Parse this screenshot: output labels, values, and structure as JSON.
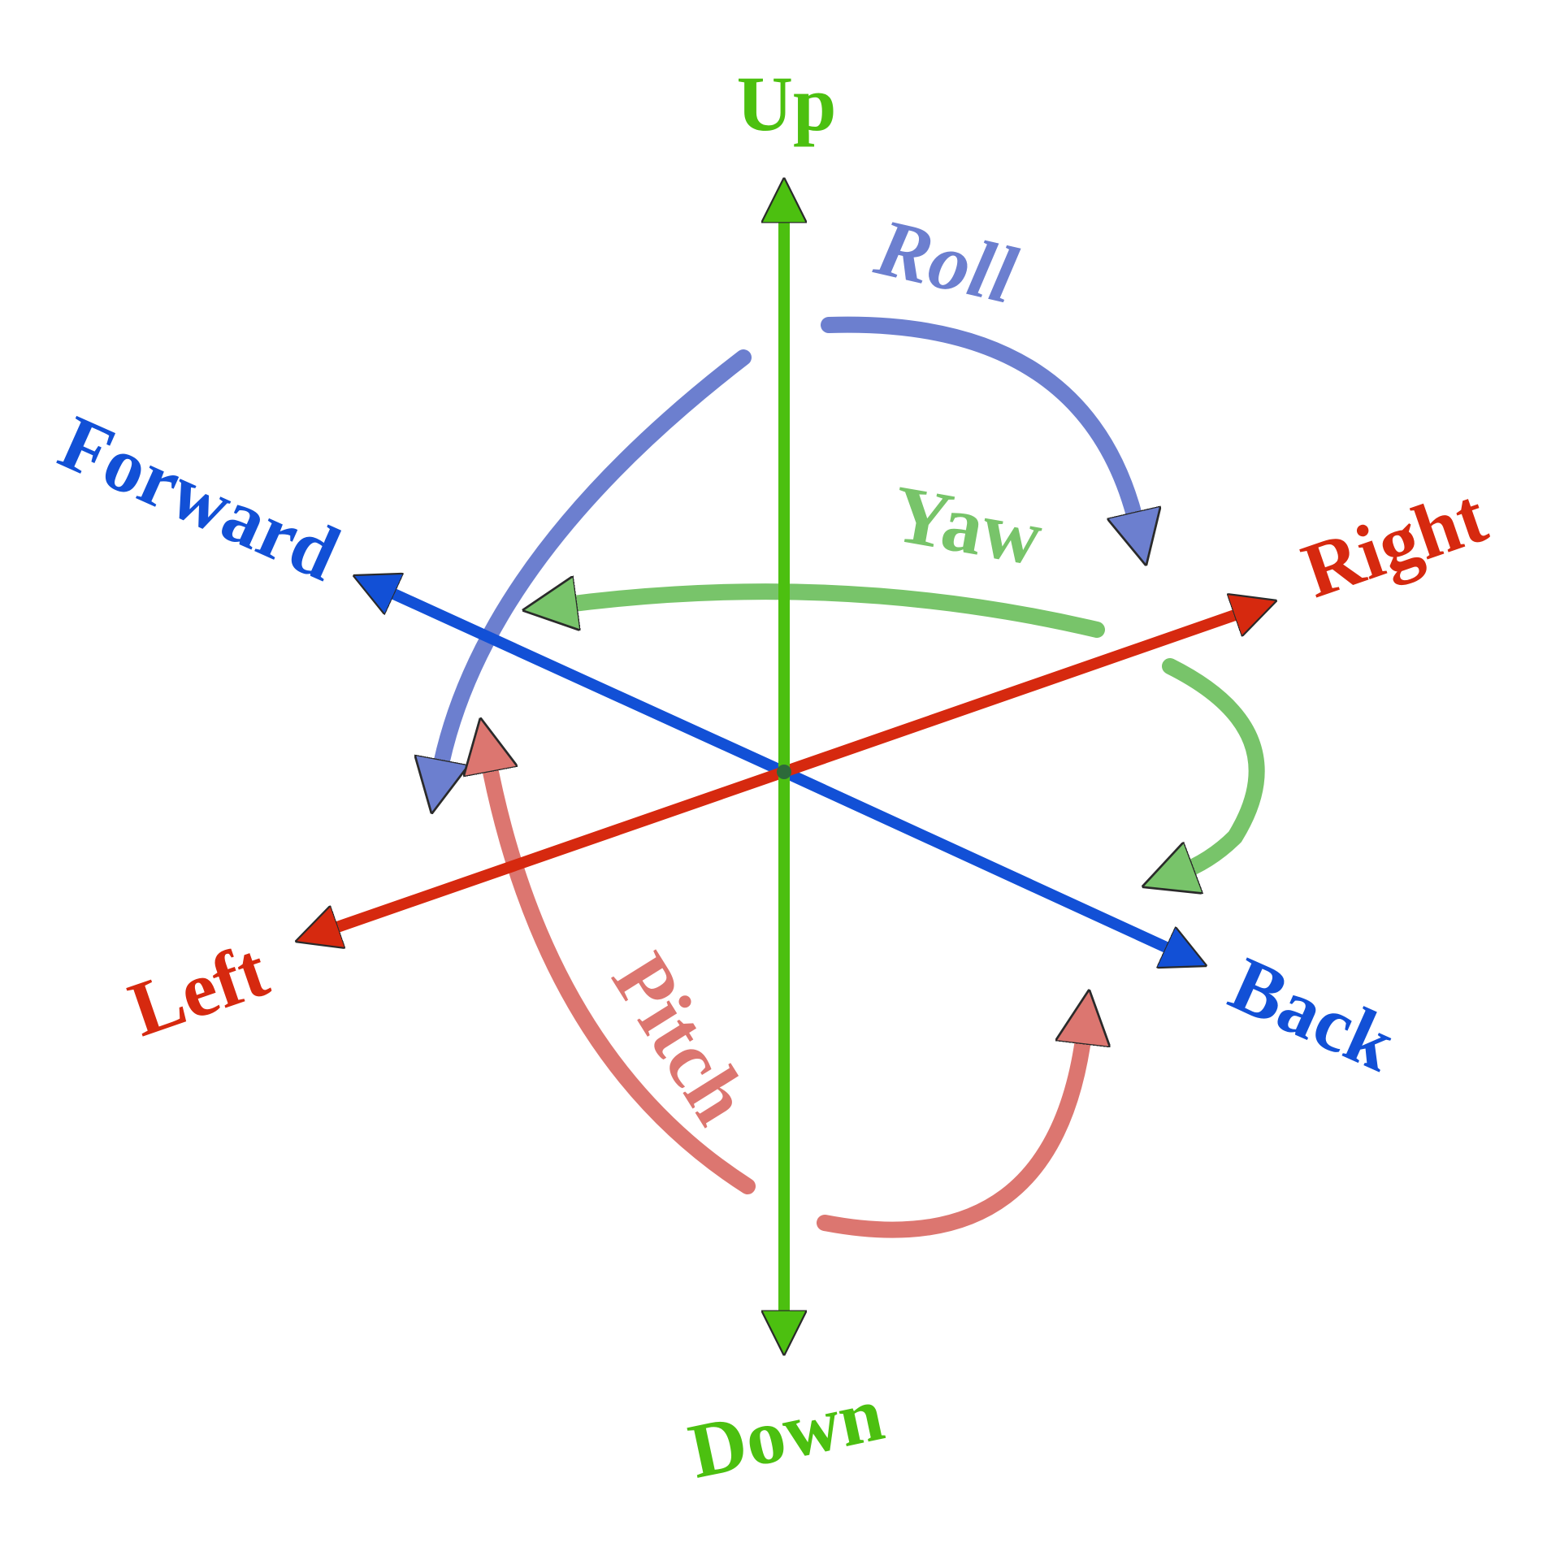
{
  "axes": {
    "vertical": {
      "positive_label": "Up",
      "negative_label": "Down",
      "color": "#4cc010"
    },
    "lateral": {
      "positive_label": "Right",
      "negative_label": "Left",
      "color": "#d6290f"
    },
    "longitudinal": {
      "positive_label": "Back",
      "negative_label": "Forward",
      "color": "#1250d6"
    }
  },
  "rotations": {
    "roll": {
      "label": "Roll",
      "color": "#6c7fcf"
    },
    "yaw": {
      "label": "Yaw",
      "color": "#78c46a"
    },
    "pitch": {
      "label": "Pitch",
      "color": "#dc7670"
    }
  }
}
